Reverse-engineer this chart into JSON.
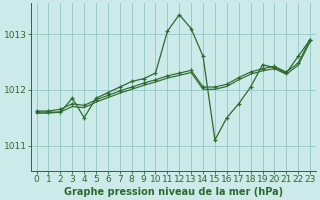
{
  "title": "Graphe pression niveau de la mer (hPa)",
  "bg_color": "#cceaea",
  "grid_color": "#99cccc",
  "line_color": "#2d6a2d",
  "xlim": [
    -0.5,
    23.5
  ],
  "ylim": [
    1010.55,
    1013.55
  ],
  "yticks": [
    1011,
    1012,
    1013
  ],
  "xticks": [
    0,
    1,
    2,
    3,
    4,
    5,
    6,
    7,
    8,
    9,
    10,
    11,
    12,
    13,
    14,
    15,
    16,
    17,
    18,
    19,
    20,
    21,
    22,
    23
  ],
  "series0": [
    1011.6,
    1011.6,
    1011.6,
    1011.85,
    1011.5,
    1011.85,
    1011.95,
    1012.05,
    1012.15,
    1012.2,
    1012.3,
    1013.05,
    1013.35,
    1013.1,
    1012.6,
    1011.1,
    1011.5,
    1011.75,
    1012.05,
    1012.45,
    1012.4,
    1012.3,
    1012.6,
    1012.9
  ],
  "series1": [
    1011.62,
    1011.62,
    1011.65,
    1011.75,
    1011.72,
    1011.82,
    1011.9,
    1011.98,
    1012.05,
    1012.12,
    1012.18,
    1012.25,
    1012.3,
    1012.35,
    1012.05,
    1012.05,
    1012.1,
    1012.22,
    1012.32,
    1012.38,
    1012.42,
    1012.32,
    1012.48,
    1012.9
  ],
  "series2": [
    1011.58,
    1011.58,
    1011.6,
    1011.7,
    1011.68,
    1011.78,
    1011.86,
    1011.94,
    1012.01,
    1012.08,
    1012.14,
    1012.21,
    1012.26,
    1012.31,
    1012.01,
    1012.01,
    1012.06,
    1012.18,
    1012.28,
    1012.34,
    1012.38,
    1012.28,
    1012.44,
    1012.86
  ],
  "tick_fontsize": 6.5,
  "title_fontsize": 7.0
}
